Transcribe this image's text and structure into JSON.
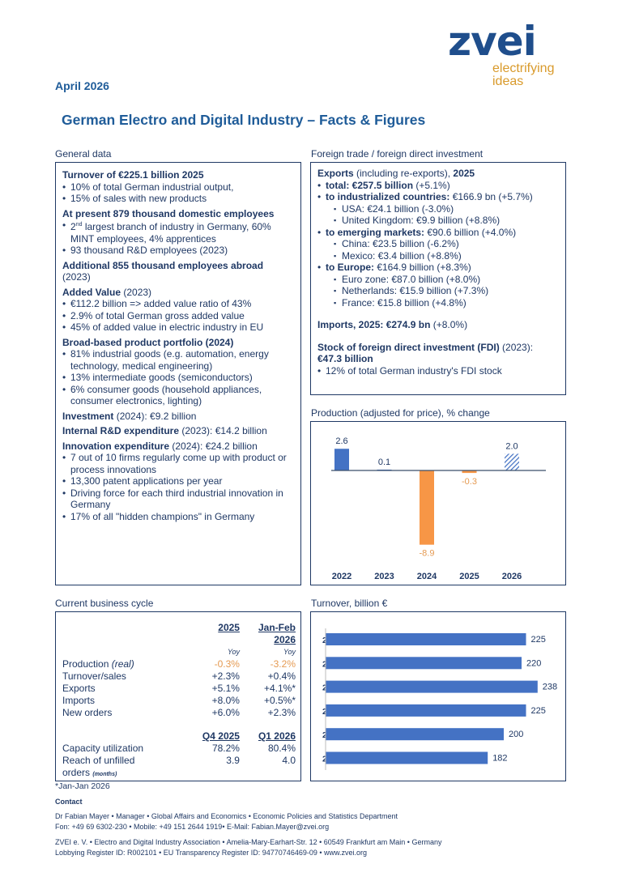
{
  "header": {
    "logo": "zvei",
    "tagline_1": "electrifying",
    "tagline_2": "ideas",
    "date": "April 2026",
    "title": "German Electro and Digital Industry – Facts & Figures"
  },
  "general": {
    "label": "General data",
    "blocks": [
      {
        "head": "Turnover of €225.1 billion 2025",
        "head_rest": "",
        "items": [
          "10% of total German industrial output,",
          "15% of sales with new products"
        ]
      },
      {
        "head": "At present 879 thousand domestic employees",
        "head_rest": "",
        "items": [
          "2nd largest branch of industry in Germany, 60% MINT employees, 4% apprentices",
          "93 thousand R&D employees (2023)"
        ]
      },
      {
        "head": "Additional 855 thousand employees abroad",
        "head_rest": " (2023)",
        "items": []
      },
      {
        "head": "Added Value",
        "head_rest": " (2023)",
        "items": [
          "€112.2 billion => added value ratio of 43%",
          "2.9% of total German gross added value",
          "45% of added value in electric industry in EU"
        ]
      },
      {
        "head": "Broad-based product portfolio (2024)",
        "head_rest": "",
        "items": [
          "81% industrial goods (e.g. automation, energy technology, medical engineering)",
          "13% intermediate goods (semiconductors)",
          "6% consumer goods (household appliances, consumer electronics, lighting)"
        ]
      },
      {
        "head": "Investment",
        "head_rest": " (2024): €9.2 billion",
        "items": []
      },
      {
        "head": "Internal R&D expenditure",
        "head_rest": " (2023): €14.2 billion",
        "items": []
      },
      {
        "head": "Innovation expenditure",
        "head_rest": " (2024): €24.2 billion",
        "items": [
          "7 out of 10 firms regularly come up with product or process innovations",
          "13,300 patent applications per year",
          "Driving force for each third industrial innovation in Germany",
          "17% of all \"hidden champions\" in Germany"
        ]
      }
    ]
  },
  "trade": {
    "label": "Foreign trade / foreign direct investment",
    "exports_head": "Exports",
    "exports_rest": " (including re-exports), ",
    "exports_year": "2025",
    "total_b": "total: €257.5 billion",
    "total_r": " (+5.1%)",
    "ind_b": "to industrialized countries:",
    "ind_r": " €166.9 bn (+5.7%)",
    "ind_items": [
      "USA: €24.1 billion (-3.0%)",
      "United Kingdom: €9.9 billion (+8.8%)"
    ],
    "em_b": "to emerging markets:",
    "em_r": " €90.6 billion (+4.0%)",
    "em_items": [
      "China: €23.5 billion (-6.2%)",
      "Mexico: €3.4 billion (+8.8%)"
    ],
    "eu_b": "to Europe:",
    "eu_r": " €164.9 billion (+8.3%)",
    "eu_items": [
      "Euro zone: €87.0 billion (+8.0%)",
      "Netherlands: €15.9 billion (+7.3%)",
      "France: €15.8 billion (+4.8%)"
    ],
    "imports_b": "Imports, 2025: €274.9 bn",
    "imports_r": " (+8.0%)",
    "fdi_b": "Stock of foreign direct investment (FDI)",
    "fdi_r": " (2023):",
    "fdi_val": "€47.3 billion",
    "fdi_item": "12% of total German industry's FDI stock"
  },
  "cycle": {
    "label": "Current business cycle",
    "col1": "2025",
    "col2a": "Jan-Feb",
    "col2b": "2026",
    "yoy": "Yoy",
    "rows": [
      {
        "label": "Production",
        "label_it": " (real)",
        "v1": "-0.3%",
        "v2": "-3.2%"
      },
      {
        "label": "Turnover/sales",
        "label_it": "",
        "v1": "+2.3%",
        "v2": "+0.4%"
      },
      {
        "label": "Exports",
        "label_it": "",
        "v1": "+5.1%",
        "v2": "+4.1%*"
      },
      {
        "label": "Imports",
        "label_it": "",
        "v1": "+8.0%",
        "v2": "+0.5%*"
      },
      {
        "label": "New orders",
        "label_it": "",
        "v1": "+6.0%",
        "v2": "+2.3%"
      }
    ],
    "q1": "Q4 2025",
    "q2": "Q1 2026",
    "rows2": [
      {
        "label": "Capacity utilization",
        "v1": "78.2%",
        "v2": "80.4%"
      },
      {
        "label": "Reach of unfilled",
        "v1": "3.9",
        "v2": "4.0"
      }
    ],
    "orders": "orders",
    "months": "(months)",
    "footnote": "*Jan-Jan 2026"
  },
  "chart_data": [
    {
      "type": "bar",
      "title": "Production (adjusted for price), % change",
      "categories": [
        "2022",
        "2023",
        "2024",
        "2025",
        "2026"
      ],
      "values": [
        2.6,
        0.1,
        -8.9,
        -0.3,
        2.0
      ],
      "labels": [
        "2.6",
        "0.1",
        "-8.9",
        "-0.3",
        "2.0"
      ],
      "forecast": [
        false,
        false,
        false,
        false,
        true
      ],
      "colors": {
        "pos": "#4472c4",
        "neg": "#f79646"
      }
    },
    {
      "type": "bar",
      "orientation": "horizontal",
      "title": "Turnover, billion €",
      "categories": [
        "2025",
        "2024",
        "2023",
        "2022",
        "2021",
        "2020"
      ],
      "values": [
        225,
        220,
        238,
        225,
        200,
        182
      ],
      "labels": [
        "225",
        "220",
        "238",
        "225",
        "200",
        "182"
      ],
      "color": "#4472c4"
    }
  ],
  "contact": {
    "head": "Contact",
    "line1": "Dr Fabian Mayer • Manager • Global Affairs and Economics • Economic Policies and Statistics Department",
    "line2": "Fon: +49 69 6302-230  • Mobile: +49 151 2644 1919• E-Mail: Fabian.Mayer@zvei.org",
    "line3": "ZVEI e. V. • Electro and Digital Industry Association • Amelia-Mary-Earhart-Str. 12 • 60549 Frankfurt am Main • Germany",
    "line4": "Lobbying Register ID: R002101 • EU Transparency Register ID: 94770746469-09 • www.zvei.org"
  }
}
